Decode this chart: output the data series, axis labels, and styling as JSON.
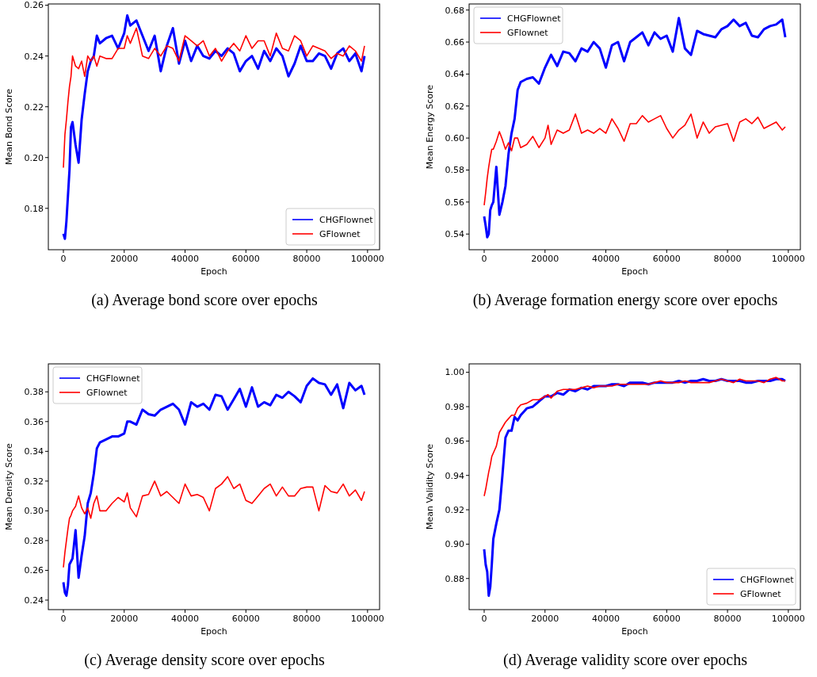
{
  "chart_data": [
    {
      "type": "line",
      "title": "(a)  Average bond score over epochs",
      "xlabel": "Epoch",
      "ylabel": "Mean Bond Score",
      "xlim": [
        -4950,
        103950
      ],
      "ylim": [
        0.1637,
        0.2605
      ],
      "xticks": [
        0,
        20000,
        40000,
        60000,
        80000,
        100000
      ],
      "yticks": [
        0.18,
        {
          "value": 0.2,
          "label": "0.20"
        },
        0.22,
        0.24,
        0.26
      ],
      "legend": "bottom right",
      "x": [
        0,
        500,
        1000,
        1500,
        2000,
        2500,
        3000,
        4000,
        5000,
        6000,
        7000,
        8000,
        9000,
        10000,
        11000,
        12000,
        14000,
        16000,
        18000,
        20000,
        21000,
        22000,
        24000,
        26000,
        28000,
        30000,
        32000,
        34000,
        36000,
        38000,
        40000,
        42000,
        44000,
        46000,
        48000,
        50000,
        52000,
        54000,
        56000,
        58000,
        60000,
        62000,
        64000,
        66000,
        68000,
        70000,
        72000,
        74000,
        76000,
        78000,
        80000,
        82000,
        84000,
        86000,
        88000,
        90000,
        92000,
        94000,
        96000,
        98000,
        99000
      ],
      "series": [
        {
          "name": "CHGFlownet",
          "color": "#0000ff",
          "values": [
            0.17,
            0.168,
            0.175,
            0.185,
            0.195,
            0.212,
            0.214,
            0.205,
            0.198,
            0.215,
            0.225,
            0.234,
            0.238,
            0.24,
            0.248,
            0.245,
            0.247,
            0.248,
            0.243,
            0.249,
            0.256,
            0.252,
            0.254,
            0.248,
            0.242,
            0.248,
            0.234,
            0.244,
            0.251,
            0.237,
            0.246,
            0.238,
            0.244,
            0.24,
            0.239,
            0.242,
            0.24,
            0.243,
            0.241,
            0.234,
            0.238,
            0.24,
            0.235,
            0.242,
            0.238,
            0.243,
            0.24,
            0.232,
            0.237,
            0.244,
            0.238,
            0.238,
            0.241,
            0.24,
            0.235,
            0.241,
            0.243,
            0.238,
            0.241,
            0.234,
            0.24
          ]
        },
        {
          "name": "GFlownet",
          "color": "#ff0000",
          "values": [
            0.196,
            0.209,
            0.215,
            0.222,
            0.228,
            0.232,
            0.24,
            0.236,
            0.235,
            0.238,
            0.232,
            0.24,
            0.238,
            0.24,
            0.236,
            0.24,
            0.239,
            0.239,
            0.243,
            0.243,
            0.248,
            0.245,
            0.251,
            0.24,
            0.239,
            0.243,
            0.24,
            0.244,
            0.243,
            0.238,
            0.248,
            0.246,
            0.244,
            0.246,
            0.24,
            0.243,
            0.238,
            0.242,
            0.245,
            0.242,
            0.248,
            0.243,
            0.246,
            0.246,
            0.24,
            0.249,
            0.243,
            0.242,
            0.248,
            0.246,
            0.24,
            0.244,
            0.243,
            0.242,
            0.239,
            0.241,
            0.24,
            0.244,
            0.242,
            0.238,
            0.244
          ]
        }
      ]
    },
    {
      "type": "line",
      "title": "(b)  Average formation energy score over epochs",
      "xlabel": "Epoch",
      "ylabel": "Mean Energy Score",
      "xlim": [
        -4950,
        103950
      ],
      "ylim": [
        0.5302,
        0.6838
      ],
      "xticks": [
        0,
        20000,
        40000,
        60000,
        80000,
        100000
      ],
      "yticks": [
        0.54,
        0.56,
        0.58,
        {
          "value": 0.6,
          "label": "0.60"
        },
        0.62,
        0.64,
        0.66,
        0.68
      ],
      "legend": "top left",
      "x": [
        0,
        500,
        1000,
        1500,
        2000,
        2500,
        3000,
        4000,
        5000,
        6000,
        7000,
        8000,
        9000,
        10000,
        11000,
        12000,
        14000,
        16000,
        18000,
        20000,
        21000,
        22000,
        24000,
        26000,
        28000,
        30000,
        32000,
        34000,
        36000,
        38000,
        40000,
        42000,
        44000,
        46000,
        48000,
        50000,
        52000,
        54000,
        56000,
        58000,
        60000,
        62000,
        64000,
        66000,
        68000,
        70000,
        72000,
        74000,
        76000,
        78000,
        80000,
        82000,
        84000,
        86000,
        88000,
        90000,
        92000,
        94000,
        96000,
        98000,
        99000
      ],
      "series": [
        {
          "name": "CHGFlownet",
          "color": "#0000ff",
          "values": [
            0.551,
            0.545,
            0.538,
            0.54,
            0.555,
            0.558,
            0.56,
            0.582,
            0.552,
            0.56,
            0.57,
            0.59,
            0.603,
            0.612,
            0.63,
            0.635,
            0.637,
            0.638,
            0.634,
            0.644,
            0.648,
            0.652,
            0.645,
            0.654,
            0.653,
            0.648,
            0.656,
            0.654,
            0.66,
            0.656,
            0.644,
            0.658,
            0.66,
            0.648,
            0.66,
            0.663,
            0.666,
            0.658,
            0.666,
            0.662,
            0.664,
            0.654,
            0.675,
            0.656,
            0.652,
            0.667,
            0.665,
            0.664,
            0.663,
            0.668,
            0.67,
            0.674,
            0.67,
            0.672,
            0.664,
            0.663,
            0.668,
            0.67,
            0.671,
            0.674,
            0.663
          ]
        },
        {
          "name": "GFlownet",
          "color": "#ff0000",
          "values": [
            0.558,
            0.566,
            0.575,
            0.582,
            0.588,
            0.593,
            0.593,
            0.598,
            0.604,
            0.599,
            0.593,
            0.597,
            0.592,
            0.6,
            0.6,
            0.594,
            0.596,
            0.601,
            0.594,
            0.6,
            0.608,
            0.596,
            0.605,
            0.603,
            0.605,
            0.615,
            0.603,
            0.605,
            0.603,
            0.606,
            0.603,
            0.612,
            0.606,
            0.598,
            0.609,
            0.609,
            0.614,
            0.61,
            0.612,
            0.614,
            0.606,
            0.6,
            0.605,
            0.608,
            0.615,
            0.6,
            0.61,
            0.603,
            0.607,
            0.608,
            0.609,
            0.598,
            0.61,
            0.612,
            0.609,
            0.613,
            0.606,
            0.608,
            0.61,
            0.605,
            0.607
          ]
        }
      ]
    },
    {
      "type": "line",
      "title": "(c)  Average density score over epochs",
      "xlabel": "Epoch",
      "ylabel": "Mean Density Score",
      "xlim": [
        -4950,
        103950
      ],
      "ylim": [
        0.2336,
        0.3988
      ],
      "xticks": [
        0,
        20000,
        40000,
        60000,
        80000,
        100000
      ],
      "yticks": [
        0.24,
        0.26,
        0.28,
        {
          "value": 0.3,
          "label": "0.30"
        },
        0.32,
        0.34,
        0.36,
        0.38
      ],
      "legend": "top left",
      "x": [
        0,
        500,
        1000,
        1500,
        2000,
        2500,
        3000,
        4000,
        5000,
        6000,
        7000,
        8000,
        9000,
        10000,
        11000,
        12000,
        14000,
        16000,
        18000,
        20000,
        21000,
        22000,
        24000,
        26000,
        28000,
        30000,
        32000,
        34000,
        36000,
        38000,
        40000,
        42000,
        44000,
        46000,
        48000,
        50000,
        52000,
        54000,
        56000,
        58000,
        60000,
        62000,
        64000,
        66000,
        68000,
        70000,
        72000,
        74000,
        76000,
        78000,
        80000,
        82000,
        84000,
        86000,
        88000,
        90000,
        92000,
        94000,
        96000,
        98000,
        99000
      ],
      "series": [
        {
          "name": "CHGFlownet",
          "color": "#0000ff",
          "values": [
            0.252,
            0.245,
            0.243,
            0.25,
            0.264,
            0.266,
            0.268,
            0.287,
            0.255,
            0.27,
            0.283,
            0.305,
            0.312,
            0.325,
            0.342,
            0.346,
            0.348,
            0.35,
            0.35,
            0.352,
            0.36,
            0.36,
            0.358,
            0.368,
            0.365,
            0.364,
            0.368,
            0.37,
            0.372,
            0.368,
            0.358,
            0.373,
            0.37,
            0.372,
            0.368,
            0.378,
            0.377,
            0.368,
            0.375,
            0.382,
            0.37,
            0.383,
            0.37,
            0.373,
            0.371,
            0.378,
            0.376,
            0.38,
            0.377,
            0.373,
            0.384,
            0.389,
            0.386,
            0.385,
            0.378,
            0.385,
            0.369,
            0.386,
            0.381,
            0.384,
            0.378
          ]
        },
        {
          "name": "GFlownet",
          "color": "#ff0000",
          "values": [
            0.262,
            0.272,
            0.28,
            0.288,
            0.295,
            0.297,
            0.3,
            0.303,
            0.31,
            0.302,
            0.298,
            0.302,
            0.295,
            0.305,
            0.31,
            0.3,
            0.3,
            0.305,
            0.309,
            0.306,
            0.312,
            0.302,
            0.296,
            0.31,
            0.311,
            0.32,
            0.31,
            0.313,
            0.309,
            0.305,
            0.318,
            0.31,
            0.311,
            0.309,
            0.3,
            0.315,
            0.318,
            0.323,
            0.315,
            0.318,
            0.307,
            0.305,
            0.31,
            0.315,
            0.318,
            0.31,
            0.316,
            0.31,
            0.31,
            0.315,
            0.316,
            0.316,
            0.3,
            0.317,
            0.313,
            0.312,
            0.318,
            0.31,
            0.314,
            0.307,
            0.313
          ]
        }
      ]
    },
    {
      "type": "line",
      "title": "(d)  Average validity score over epochs",
      "xlabel": "Epoch",
      "ylabel": "Mean Validity Score",
      "xlim": [
        -4950,
        103950
      ],
      "ylim": [
        0.8619,
        1.0049
      ],
      "xticks": [
        0,
        20000,
        40000,
        60000,
        80000,
        100000
      ],
      "yticks": [
        0.88,
        {
          "value": 0.9,
          "label": "0.90"
        },
        0.92,
        0.94,
        0.96,
        0.98,
        {
          "value": 1,
          "label": "1.00"
        }
      ],
      "legend": "bottom right",
      "x": [
        0,
        500,
        1000,
        1500,
        2000,
        2500,
        3000,
        4000,
        5000,
        6000,
        7000,
        8000,
        9000,
        10000,
        11000,
        12000,
        14000,
        16000,
        18000,
        20000,
        21000,
        22000,
        24000,
        26000,
        28000,
        30000,
        32000,
        34000,
        36000,
        38000,
        40000,
        42000,
        44000,
        46000,
        48000,
        50000,
        52000,
        54000,
        56000,
        58000,
        60000,
        62000,
        64000,
        66000,
        68000,
        70000,
        72000,
        74000,
        76000,
        78000,
        80000,
        82000,
        84000,
        86000,
        88000,
        90000,
        92000,
        94000,
        96000,
        98000,
        99000
      ],
      "series": [
        {
          "name": "CHGFlownet",
          "color": "#0000ff",
          "values": [
            0.897,
            0.888,
            0.884,
            0.87,
            0.875,
            0.888,
            0.903,
            0.912,
            0.92,
            0.94,
            0.962,
            0.966,
            0.966,
            0.974,
            0.972,
            0.975,
            0.979,
            0.98,
            0.983,
            0.986,
            0.986,
            0.986,
            0.988,
            0.987,
            0.99,
            0.989,
            0.991,
            0.99,
            0.992,
            0.992,
            0.992,
            0.993,
            0.993,
            0.992,
            0.994,
            0.994,
            0.994,
            0.993,
            0.994,
            0.994,
            0.994,
            0.994,
            0.995,
            0.994,
            0.995,
            0.995,
            0.996,
            0.995,
            0.995,
            0.996,
            0.995,
            0.995,
            0.995,
            0.994,
            0.994,
            0.995,
            0.995,
            0.995,
            0.996,
            0.996,
            0.995
          ]
        },
        {
          "name": "GFlownet",
          "color": "#ff0000",
          "values": [
            0.928,
            0.932,
            0.937,
            0.942,
            0.946,
            0.951,
            0.953,
            0.957,
            0.965,
            0.968,
            0.971,
            0.973,
            0.975,
            0.975,
            0.979,
            0.981,
            0.982,
            0.984,
            0.984,
            0.986,
            0.987,
            0.985,
            0.989,
            0.99,
            0.99,
            0.99,
            0.991,
            0.992,
            0.991,
            0.992,
            0.992,
            0.992,
            0.993,
            0.993,
            0.993,
            0.993,
            0.993,
            0.993,
            0.994,
            0.995,
            0.994,
            0.994,
            0.994,
            0.995,
            0.994,
            0.994,
            0.994,
            0.994,
            0.995,
            0.996,
            0.995,
            0.994,
            0.996,
            0.995,
            0.995,
            0.995,
            0.994,
            0.996,
            0.997,
            0.995,
            0.995
          ]
        }
      ]
    }
  ]
}
